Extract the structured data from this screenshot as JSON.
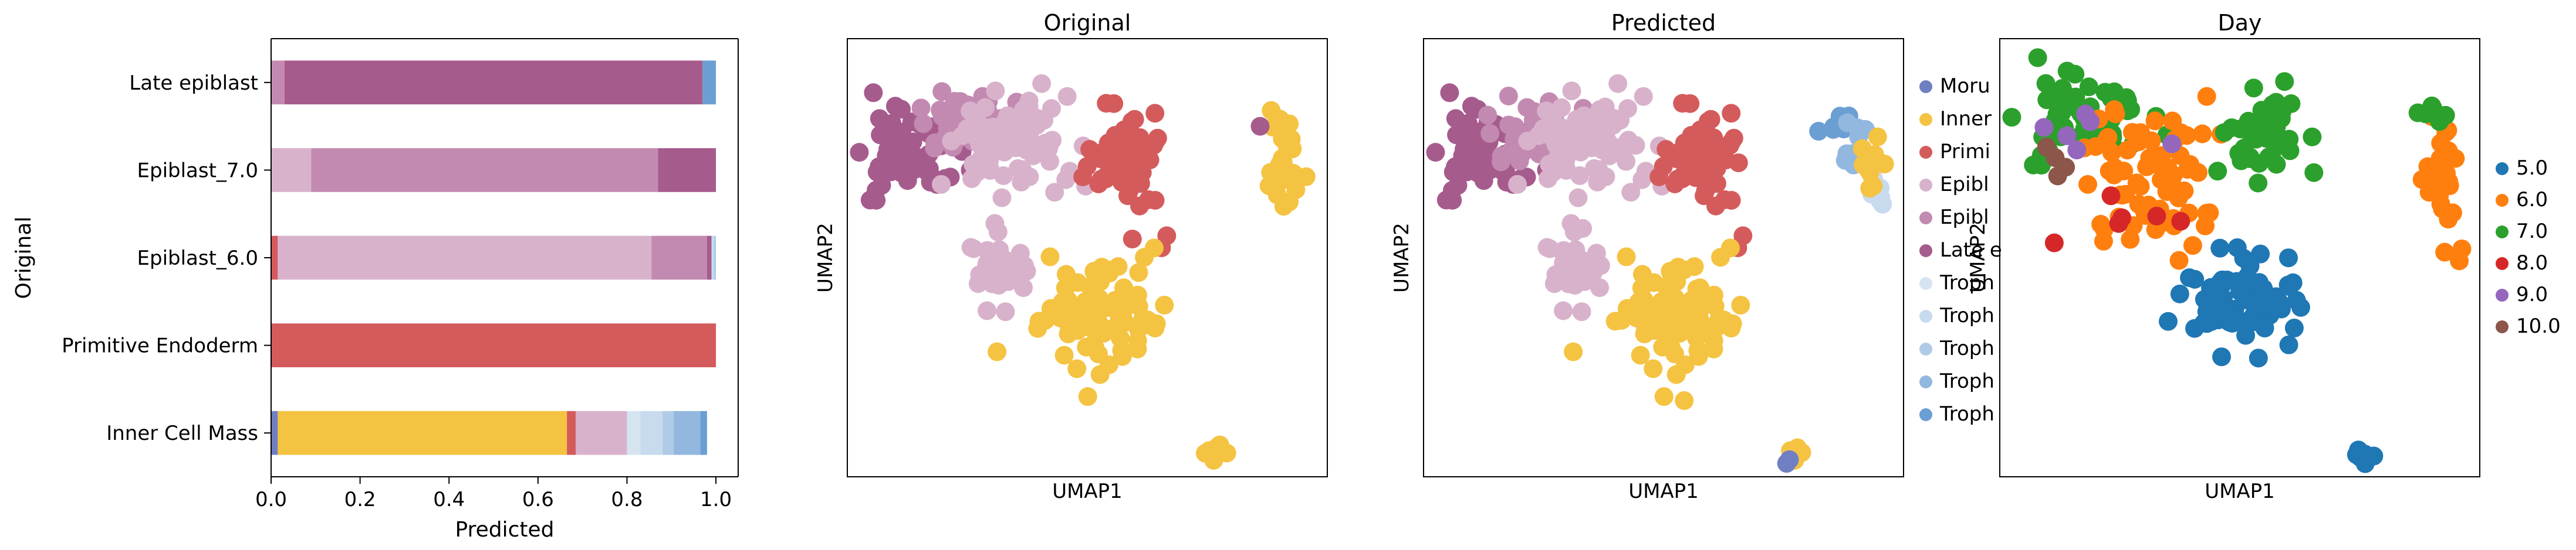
{
  "colors": {
    "Morula": "#6f7fc2",
    "Inner Cell Mass": "#f5c342",
    "Primitive Endoderm": "#d45b5c",
    "Epiblast_6.0": "#d8b2cb",
    "Epiblast_7.0": "#c38ab1",
    "Late epiblast": "#a65b8d",
    "Trophectoderm_5.0": "#d6e4f2",
    "Trophectoderm_6.0": "#c8daee",
    "Trophectoderm_7.0": "#b0cbe7",
    "Trophectoderm_8.0": "#93b8df",
    "Trophectoderm_9.0": "#6b9fd3",
    "day_5.0": "#1f77b4",
    "day_6.0": "#ff7f0e",
    "day_7.0": "#2ca02c",
    "day_8.0": "#d62728",
    "day_9.0": "#9467bd",
    "day_10.0": "#8c564b"
  },
  "chart_data": [
    {
      "type": "bar",
      "orientation": "horizontal-stacked",
      "title": "",
      "xlabel": "Predicted",
      "ylabel": "Original",
      "xlim": [
        0,
        1.05
      ],
      "x_ticks": [
        "0.0",
        "0.2",
        "0.4",
        "0.6",
        "0.8",
        "1.0"
      ],
      "categories": [
        "Late epiblast",
        "Epiblast_7.0",
        "Epiblast_6.0",
        "Primitive Endoderm",
        "Inner Cell Mass"
      ],
      "series": [
        {
          "key": "Morula",
          "values": [
            0,
            0,
            0,
            0,
            0.015
          ]
        },
        {
          "key": "Inner Cell Mass",
          "values": [
            0,
            0,
            0,
            0,
            0.65
          ]
        },
        {
          "key": "Primitive Endoderm",
          "values": [
            0,
            0,
            0.015,
            1.0,
            0.02
          ]
        },
        {
          "key": "Epiblast_6.0",
          "values": [
            0,
            0.09,
            0.84,
            0,
            0.115
          ]
        },
        {
          "key": "Epiblast_7.0",
          "values": [
            0.03,
            0.78,
            0.125,
            0,
            0
          ]
        },
        {
          "key": "Late epiblast",
          "values": [
            0.94,
            0.13,
            0.01,
            0,
            0
          ]
        },
        {
          "key": "Trophectoderm_5.0",
          "values": [
            0,
            0,
            0,
            0,
            0.03
          ]
        },
        {
          "key": "Trophectoderm_6.0",
          "values": [
            0,
            0,
            0.005,
            0,
            0.05
          ]
        },
        {
          "key": "Trophectoderm_7.0",
          "values": [
            0,
            0,
            0.005,
            0,
            0.025
          ]
        },
        {
          "key": "Trophectoderm_8.0",
          "values": [
            0,
            0,
            0,
            0,
            0.06
          ]
        },
        {
          "key": "Trophectoderm_9.0",
          "values": [
            0.03,
            0,
            0,
            0,
            0.015
          ]
        }
      ]
    },
    {
      "type": "scatter",
      "title": "Original",
      "xlabel": "UMAP1",
      "ylabel": "UMAP2",
      "clusters": [
        {
          "key": "Late epiblast",
          "n": 60,
          "center": [
            0.13,
            0.26
          ],
          "spread": [
            0.09,
            0.08
          ]
        },
        {
          "key": "Epiblast_7.0",
          "n": 40,
          "center": [
            0.24,
            0.18
          ],
          "spread": [
            0.07,
            0.06
          ]
        },
        {
          "key": "Epiblast_6.0",
          "n": 75,
          "center": [
            0.34,
            0.24
          ],
          "spread": [
            0.09,
            0.09
          ]
        },
        {
          "key": "Epiblast_6.0",
          "n": 30,
          "center": [
            0.31,
            0.52
          ],
          "spread": [
            0.05,
            0.08
          ]
        },
        {
          "key": "Primitive Endoderm",
          "n": 70,
          "center": [
            0.58,
            0.27
          ],
          "spread": [
            0.06,
            0.1
          ]
        },
        {
          "key": "Inner Cell Mass",
          "n": 90,
          "center": [
            0.52,
            0.62
          ],
          "spread": [
            0.1,
            0.11
          ]
        },
        {
          "key": "Inner Cell Mass",
          "n": 28,
          "center": [
            0.91,
            0.3
          ],
          "spread": [
            0.03,
            0.1
          ]
        },
        {
          "key": "Inner Cell Mass",
          "n": 10,
          "center": [
            0.76,
            0.95
          ],
          "spread": [
            0.02,
            0.015
          ]
        },
        {
          "key": "Late epiblast",
          "n": 1,
          "center": [
            0.86,
            0.2
          ],
          "spread": [
            0,
            0
          ]
        }
      ]
    },
    {
      "type": "scatter",
      "title": "Predicted",
      "xlabel": "UMAP1",
      "ylabel": "UMAP2",
      "clusters": [
        {
          "key": "Late epiblast",
          "n": 60,
          "center": [
            0.13,
            0.26
          ],
          "spread": [
            0.09,
            0.08
          ]
        },
        {
          "key": "Epiblast_7.0",
          "n": 35,
          "center": [
            0.22,
            0.2
          ],
          "spread": [
            0.07,
            0.07
          ]
        },
        {
          "key": "Epiblast_6.0",
          "n": 75,
          "center": [
            0.34,
            0.24
          ],
          "spread": [
            0.09,
            0.09
          ]
        },
        {
          "key": "Epiblast_6.0",
          "n": 30,
          "center": [
            0.31,
            0.52
          ],
          "spread": [
            0.05,
            0.08
          ]
        },
        {
          "key": "Primitive Endoderm",
          "n": 70,
          "center": [
            0.58,
            0.27
          ],
          "spread": [
            0.06,
            0.1
          ]
        },
        {
          "key": "Inner Cell Mass",
          "n": 90,
          "center": [
            0.52,
            0.62
          ],
          "spread": [
            0.1,
            0.11
          ]
        },
        {
          "key": "Trophectoderm_9.0",
          "n": 8,
          "center": [
            0.86,
            0.2
          ],
          "spread": [
            0.03,
            0.03
          ]
        },
        {
          "key": "Trophectoderm_8.0",
          "n": 8,
          "center": [
            0.91,
            0.26
          ],
          "spread": [
            0.03,
            0.05
          ]
        },
        {
          "key": "Trophectoderm_6.0",
          "n": 10,
          "center": [
            0.94,
            0.36
          ],
          "spread": [
            0.02,
            0.04
          ]
        },
        {
          "key": "Inner Cell Mass",
          "n": 10,
          "center": [
            0.93,
            0.3
          ],
          "spread": [
            0.02,
            0.05
          ]
        },
        {
          "key": "Inner Cell Mass",
          "n": 8,
          "center": [
            0.77,
            0.95
          ],
          "spread": [
            0.02,
            0.015
          ]
        },
        {
          "key": "Morula",
          "n": 2,
          "center": [
            0.75,
            0.97
          ],
          "spread": [
            0.01,
            0.01
          ]
        }
      ],
      "legend": {
        "placement": "right",
        "entries": [
          {
            "key": "Morula",
            "label": "Moru"
          },
          {
            "key": "Inner Cell Mass",
            "label": "Inner"
          },
          {
            "key": "Primitive Endoderm",
            "label": "Primi"
          },
          {
            "key": "Epiblast_6.0",
            "label": "Epibl"
          },
          {
            "key": "Epiblast_7.0",
            "label": "Epibl"
          },
          {
            "key": "Late epiblast",
            "label": "Late e"
          },
          {
            "key": "Trophectoderm_5.0",
            "label": "Troph"
          },
          {
            "key": "Trophectoderm_6.0",
            "label": "Troph"
          },
          {
            "key": "Trophectoderm_7.0",
            "label": "Troph"
          },
          {
            "key": "Trophectoderm_8.0",
            "label": "Troph"
          },
          {
            "key": "Trophectoderm_9.0",
            "label": "Troph"
          }
        ]
      }
    },
    {
      "type": "scatter",
      "title": "Day",
      "xlabel": "UMAP1",
      "ylabel": "UMAP2",
      "clusters": [
        {
          "key": "day_7.0",
          "n": 55,
          "center": [
            0.18,
            0.18
          ],
          "spread": [
            0.12,
            0.08
          ]
        },
        {
          "key": "day_6.0",
          "n": 70,
          "center": [
            0.3,
            0.3
          ],
          "spread": [
            0.1,
            0.14
          ]
        },
        {
          "key": "day_7.0",
          "n": 45,
          "center": [
            0.55,
            0.22
          ],
          "spread": [
            0.06,
            0.08
          ]
        },
        {
          "key": "day_5.0",
          "n": 80,
          "center": [
            0.5,
            0.6
          ],
          "spread": [
            0.1,
            0.1
          ]
        },
        {
          "key": "day_6.0",
          "n": 30,
          "center": [
            0.92,
            0.3
          ],
          "spread": [
            0.03,
            0.1
          ]
        },
        {
          "key": "day_7.0",
          "n": 8,
          "center": [
            0.9,
            0.17
          ],
          "spread": [
            0.03,
            0.02
          ]
        },
        {
          "key": "day_5.0",
          "n": 8,
          "center": [
            0.76,
            0.95
          ],
          "spread": [
            0.02,
            0.015
          ]
        },
        {
          "key": "day_8.0",
          "n": 6,
          "center": [
            0.28,
            0.38
          ],
          "spread": [
            0.08,
            0.1
          ]
        },
        {
          "key": "day_9.0",
          "n": 6,
          "center": [
            0.2,
            0.22
          ],
          "spread": [
            0.15,
            0.1
          ]
        },
        {
          "key": "day_10.0",
          "n": 4,
          "center": [
            0.1,
            0.28
          ],
          "spread": [
            0.04,
            0.04
          ]
        }
      ],
      "legend": {
        "placement": "right",
        "entries": [
          {
            "key": "day_5.0",
            "label": "5.0"
          },
          {
            "key": "day_6.0",
            "label": "6.0"
          },
          {
            "key": "day_7.0",
            "label": "7.0"
          },
          {
            "key": "day_8.0",
            "label": "8.0"
          },
          {
            "key": "day_9.0",
            "label": "9.0"
          },
          {
            "key": "day_10.0",
            "label": "10.0"
          }
        ]
      }
    }
  ]
}
